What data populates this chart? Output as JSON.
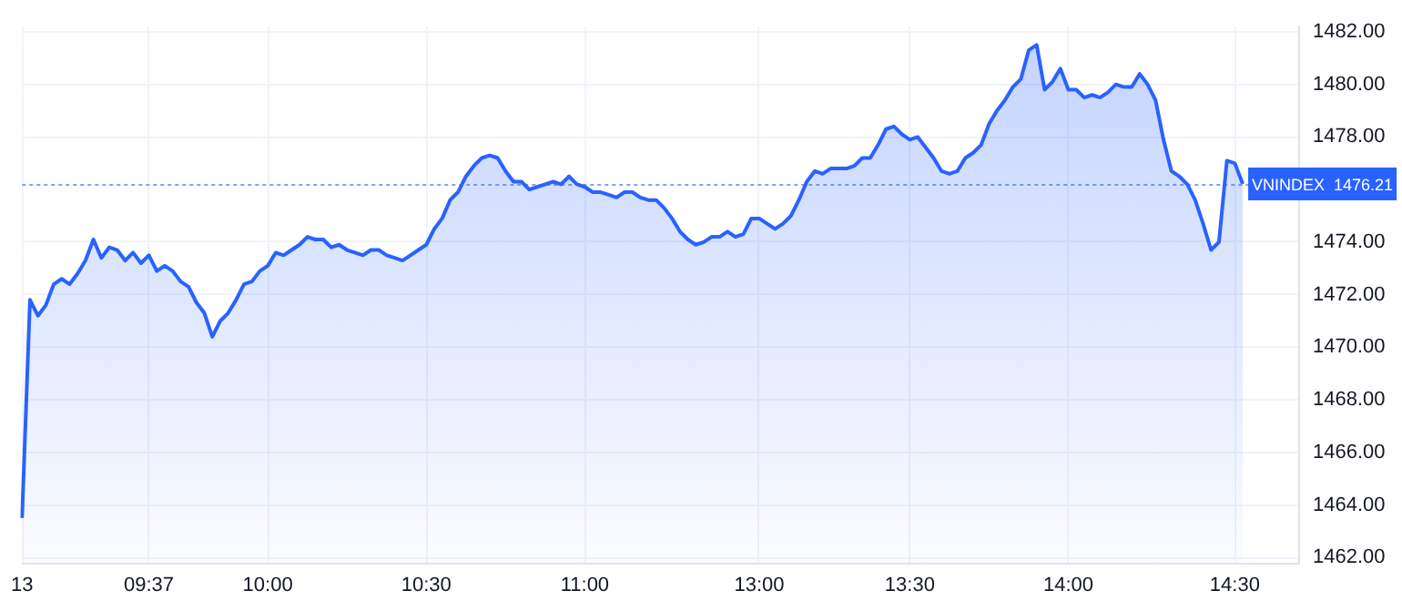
{
  "chart_data": {
    "type": "area",
    "categories": [
      "13",
      null,
      null,
      null,
      null,
      null,
      null,
      null,
      null,
      null,
      null,
      null,
      null,
      null,
      null,
      null,
      "09:37",
      null,
      null,
      null,
      null,
      null,
      null,
      null,
      null,
      null,
      null,
      null,
      null,
      null,
      null,
      "10:00",
      null,
      null,
      null,
      null,
      null,
      null,
      null,
      null,
      null,
      null,
      null,
      null,
      null,
      null,
      null,
      null,
      null,
      null,
      null,
      "10:30",
      null,
      null,
      null,
      null,
      null,
      null,
      null,
      null,
      null,
      null,
      null,
      null,
      null,
      null,
      null,
      null,
      null,
      null,
      null,
      "11:00",
      null,
      null,
      null,
      null,
      null,
      null,
      null,
      null,
      null,
      null,
      null,
      null,
      null,
      null,
      null,
      null,
      null,
      null,
      null,
      null,
      null,
      "13:00",
      null,
      null,
      null,
      null,
      null,
      null,
      null,
      null,
      null,
      null,
      null,
      null,
      null,
      null,
      null,
      null,
      null,
      null,
      "13:30",
      null,
      null,
      null,
      null,
      null,
      null,
      null,
      null,
      null,
      null,
      null,
      null,
      null,
      null,
      null,
      null,
      null,
      null,
      null,
      "14:00",
      null,
      null,
      null,
      null,
      null,
      null,
      null,
      null,
      null,
      null,
      null,
      null,
      null,
      null,
      null,
      null,
      null,
      null,
      null,
      null,
      "14:30",
      null,
      null,
      null,
      null,
      null,
      null,
      null,
      null
    ],
    "series": [
      {
        "name": "VNINDEX",
        "color": "#2962ff",
        "values": [
          1463.5,
          1471.8,
          1471.2,
          1471.6,
          1472.4,
          1472.6,
          1472.4,
          1472.8,
          1473.3,
          1474.1,
          1473.4,
          1473.8,
          1473.7,
          1473.3,
          1473.6,
          1473.2,
          1473.5,
          1472.9,
          1473.1,
          1472.9,
          1472.5,
          1472.3,
          1471.7,
          1471.3,
          1470.4,
          1471.0,
          1471.3,
          1471.8,
          1472.4,
          1472.5,
          1472.9,
          1473.1,
          1473.6,
          1473.5,
          1473.7,
          1473.9,
          1474.2,
          1474.1,
          1474.1,
          1473.8,
          1473.9,
          1473.7,
          1473.6,
          1473.5,
          1473.7,
          1473.7,
          1473.5,
          1473.4,
          1473.3,
          1473.5,
          1473.7,
          1473.9,
          1474.5,
          1474.9,
          1475.6,
          1475.9,
          1476.5,
          1476.9,
          1477.2,
          1477.3,
          1477.2,
          1476.7,
          1476.3,
          1476.3,
          1476.0,
          1476.1,
          1476.2,
          1476.3,
          1476.2,
          1476.5,
          1476.2,
          1476.1,
          1475.9,
          1475.9,
          1475.8,
          1475.7,
          1475.9,
          1475.9,
          1475.7,
          1475.6,
          1475.6,
          1475.3,
          1474.9,
          1474.4,
          1474.1,
          1473.9,
          1474.0,
          1474.2,
          1474.2,
          1474.4,
          1474.2,
          1474.3,
          1474.9,
          1474.9,
          1474.7,
          1474.5,
          1474.7,
          1475.0,
          1475.6,
          1476.3,
          1476.7,
          1476.6,
          1476.8,
          1476.8,
          1476.8,
          1476.9,
          1477.2,
          1477.2,
          1477.7,
          1478.3,
          1478.4,
          1478.1,
          1477.9,
          1478.0,
          1477.6,
          1477.2,
          1476.7,
          1476.6,
          1476.7,
          1477.2,
          1477.4,
          1477.7,
          1478.5,
          1479.0,
          1479.4,
          1479.9,
          1480.2,
          1481.3,
          1481.5,
          1479.8,
          1480.1,
          1480.6,
          1479.8,
          1479.8,
          1479.5,
          1479.6,
          1479.5,
          1479.7,
          1480.0,
          1479.9,
          1479.9,
          1480.4,
          1480.0,
          1479.4,
          1477.9,
          1476.7,
          1476.5,
          1476.2,
          1475.6,
          1474.7,
          1473.7,
          1474.0,
          1477.1,
          1477.0,
          1476.21,
          null,
          null,
          null,
          null,
          null,
          null,
          null
        ]
      }
    ],
    "ylim": [
      1461.8,
      1482.2
    ],
    "yticks": [
      {
        "value": 1462,
        "label": "1462.00"
      },
      {
        "value": 1464,
        "label": "1464.00"
      },
      {
        "value": 1466,
        "label": "1466.00"
      },
      {
        "value": 1468,
        "label": "1468.00"
      },
      {
        "value": 1470,
        "label": "1470.00"
      },
      {
        "value": 1472,
        "label": "1472.00"
      },
      {
        "value": 1474,
        "label": "1474.00"
      },
      {
        "value": 1478,
        "label": "1478.00"
      },
      {
        "value": 1480,
        "label": "1480.00"
      },
      {
        "value": 1482,
        "label": "1482.00"
      }
    ],
    "grid": true,
    "ref_lines": [
      {
        "axis": "y",
        "value": 1476.21,
        "label": "1476.21",
        "color": "#2962ff",
        "line_style": "dotted"
      }
    ]
  }
}
